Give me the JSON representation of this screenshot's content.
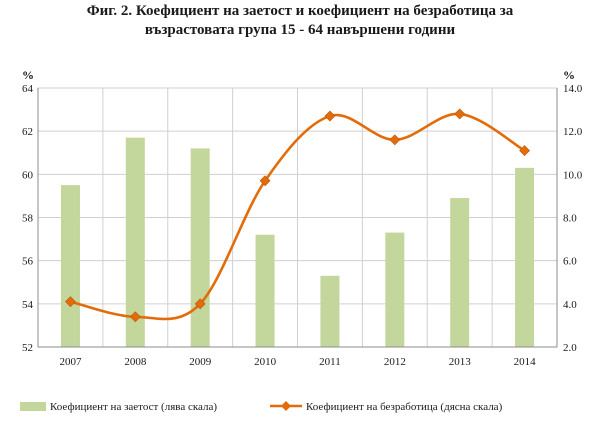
{
  "chart_data": {
    "type": "bar",
    "title": "Фиг. 2. Коефициент на заетост и коефициент на безработица за",
    "subtitle": "възрастовата група 15 - 64 навършени години",
    "categories": [
      "2007",
      "2008",
      "2009",
      "2010",
      "2011",
      "2012",
      "2013",
      "2014"
    ],
    "series": [
      {
        "name": "Коефициент на заетост (лява скала)",
        "type": "bar",
        "axis": "left",
        "color": "#c3d69b",
        "values": [
          59.5,
          61.7,
          61.2,
          57.2,
          55.3,
          57.3,
          58.9,
          60.3
        ]
      },
      {
        "name": "Коефициент на безработица (дясна скала)",
        "type": "line",
        "axis": "right",
        "color": "#e36c0a",
        "values": [
          4.1,
          3.4,
          4.0,
          9.7,
          12.7,
          11.6,
          12.8,
          11.1
        ]
      }
    ],
    "y_left": {
      "unit": "%",
      "ylim": [
        52,
        64
      ],
      "ticks": [
        "52",
        "54",
        "56",
        "58",
        "60",
        "62",
        "64"
      ]
    },
    "y_right": {
      "unit": "%",
      "ylim": [
        2,
        14
      ],
      "ticks": [
        "2.0",
        "4.0",
        "6.0",
        "8.0",
        "10.0",
        "12.0",
        "14.0"
      ]
    },
    "grid": true,
    "legend": "bottom"
  }
}
